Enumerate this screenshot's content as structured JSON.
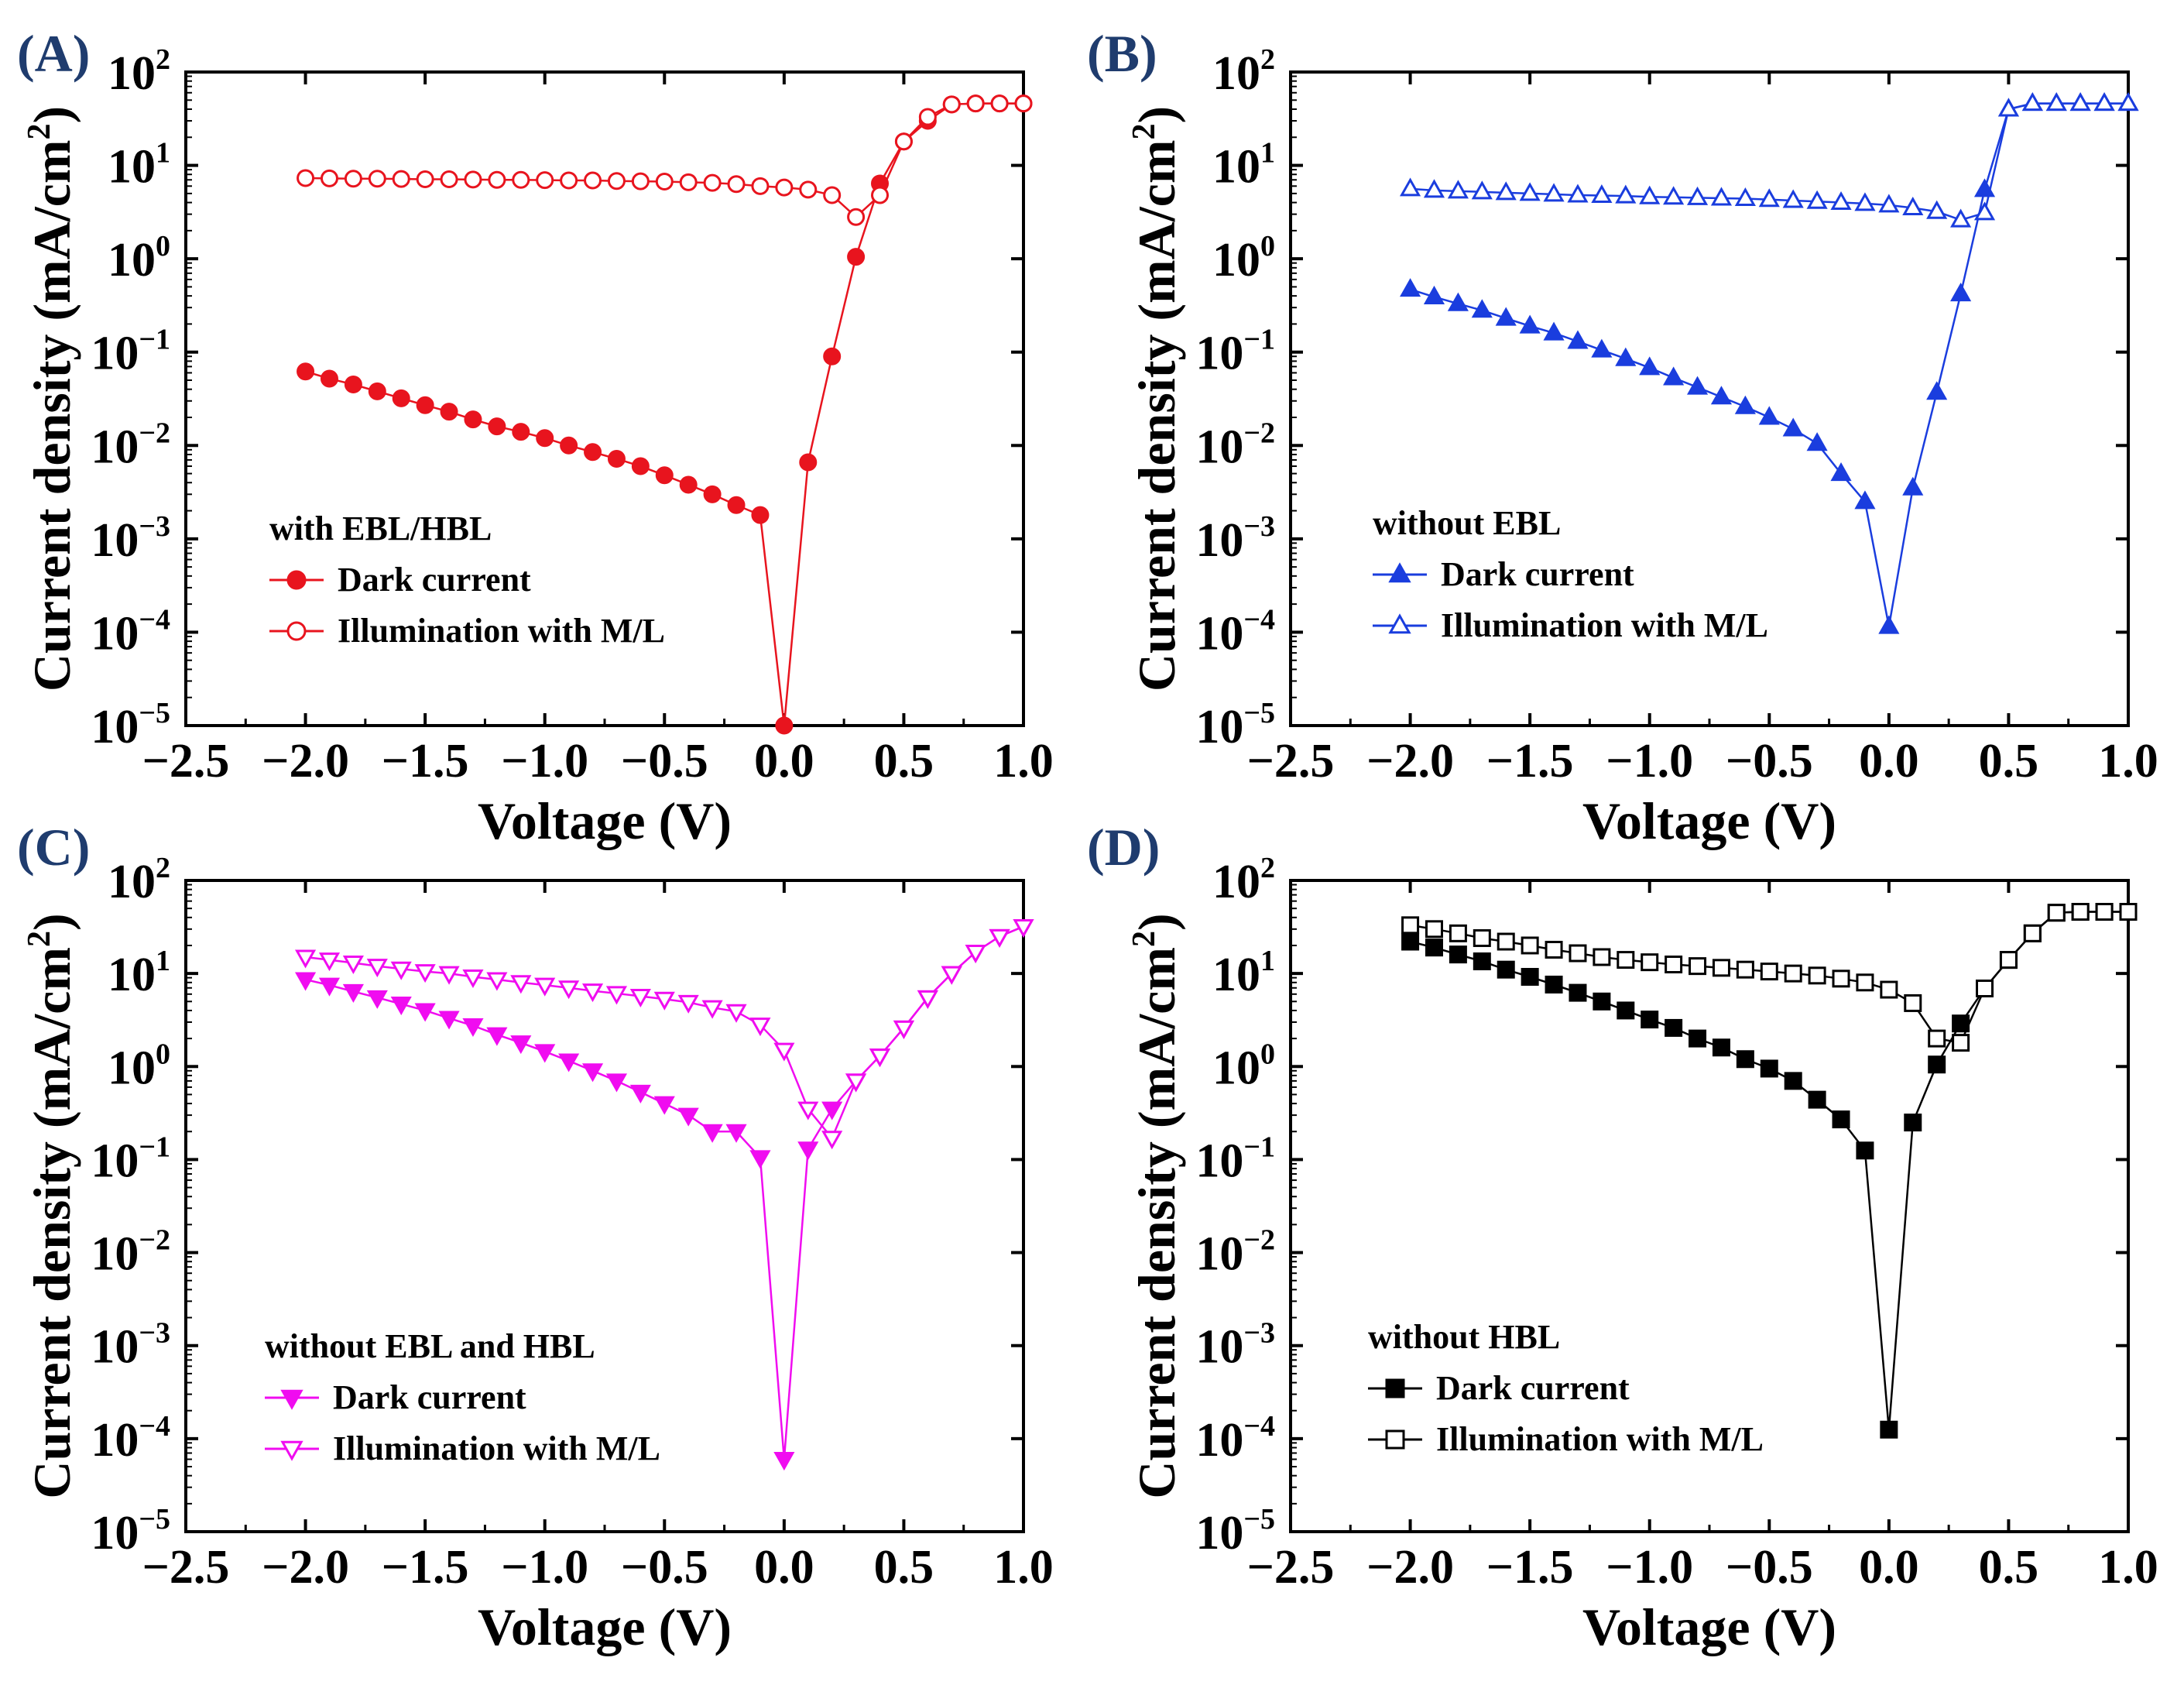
{
  "figure": {
    "x_label": "Voltage (V)",
    "y_label_main": "Current density (mA/cm",
    "y_label_sup": "2",
    "y_label_close": ")",
    "x_ticks": [
      "−2.5",
      "−2.0",
      "−1.5",
      "−1.0",
      "−0.5",
      "0.0",
      "0.5",
      "1.0"
    ],
    "y_tick_base": "10",
    "y_tick_exps": [
      "−5",
      "−4",
      "−3",
      "−2",
      "−1",
      "0",
      "1",
      "2"
    ],
    "legend_dark": "Dark current",
    "legend_illum": "Illumination with M/L"
  },
  "chart_data": [
    {
      "panel": "(A)",
      "type": "line",
      "yscale": "log",
      "xlim": [
        -2.5,
        1.0
      ],
      "ylim": [
        1e-05,
        100
      ],
      "legend_title": "with EBL/HBL",
      "color": "#e8141e",
      "marker": "circle",
      "x": [
        -2.0,
        -1.9,
        -1.8,
        -1.7,
        -1.6,
        -1.5,
        -1.4,
        -1.3,
        -1.2,
        -1.1,
        -1.0,
        -0.9,
        -0.8,
        -0.7,
        -0.6,
        -0.5,
        -0.4,
        -0.3,
        -0.2,
        -0.1,
        0.0,
        0.1,
        0.2,
        0.3,
        0.4,
        0.5,
        0.6,
        0.7,
        0.8,
        0.9,
        1.0
      ],
      "series": [
        {
          "name": "Dark current",
          "filled": true,
          "values": [
            0.062,
            0.052,
            0.045,
            0.038,
            0.032,
            0.027,
            0.023,
            0.019,
            0.016,
            0.014,
            0.012,
            0.01,
            0.0085,
            0.0072,
            0.006,
            0.0048,
            0.0038,
            0.003,
            0.0023,
            0.0018,
            1e-05,
            0.0066,
            0.09,
            1.05,
            6.4,
            18,
            30,
            45,
            46,
            46,
            46
          ]
        },
        {
          "name": "Illumination with M/L",
          "filled": false,
          "values": [
            7.3,
            7.25,
            7.2,
            7.2,
            7.15,
            7.1,
            7.1,
            7.05,
            7.0,
            7.0,
            6.95,
            6.9,
            6.9,
            6.8,
            6.75,
            6.7,
            6.6,
            6.5,
            6.3,
            6.0,
            5.8,
            5.5,
            4.8,
            2.8,
            4.8,
            18,
            33,
            45,
            46,
            46,
            46
          ]
        }
      ]
    },
    {
      "panel": "(B)",
      "type": "line",
      "yscale": "log",
      "xlim": [
        -2.5,
        1.0
      ],
      "ylim": [
        1e-05,
        100
      ],
      "legend_title": "without EBL",
      "color": "#1a3dde",
      "marker": "triangle-up",
      "x": [
        -2.0,
        -1.9,
        -1.8,
        -1.7,
        -1.6,
        -1.5,
        -1.4,
        -1.3,
        -1.2,
        -1.1,
        -1.0,
        -0.9,
        -0.8,
        -0.7,
        -0.6,
        -0.5,
        -0.4,
        -0.3,
        -0.2,
        -0.1,
        0.0,
        0.1,
        0.2,
        0.3,
        0.4,
        0.5,
        0.6,
        0.7,
        0.8,
        0.9,
        1.0
      ],
      "series": [
        {
          "name": "Dark current",
          "filled": true,
          "values": [
            0.47,
            0.39,
            0.33,
            0.28,
            0.23,
            0.19,
            0.16,
            0.13,
            0.105,
            0.085,
            0.068,
            0.053,
            0.042,
            0.033,
            0.026,
            0.02,
            0.015,
            0.0105,
            0.005,
            0.0025,
            0.000115,
            0.0035,
            0.037,
            0.42,
            5.5,
            40,
            46,
            46,
            46,
            46,
            46
          ]
        },
        {
          "name": "Illumination with M/L",
          "filled": false,
          "values": [
            5.6,
            5.4,
            5.3,
            5.2,
            5.1,
            5.0,
            4.9,
            4.8,
            4.75,
            4.7,
            4.6,
            4.55,
            4.5,
            4.45,
            4.4,
            4.3,
            4.2,
            4.1,
            4.0,
            3.9,
            3.75,
            3.5,
            3.2,
            2.6,
            3.1,
            40,
            46,
            46,
            46,
            46,
            46
          ]
        }
      ]
    },
    {
      "panel": "(C)",
      "type": "line",
      "yscale": "log",
      "xlim": [
        -2.5,
        1.0
      ],
      "ylim": [
        1e-05,
        100
      ],
      "legend_title": "without EBL and HBL",
      "color": "#f00cf0",
      "marker": "triangle-down",
      "x": [
        -2.0,
        -1.9,
        -1.8,
        -1.7,
        -1.6,
        -1.5,
        -1.4,
        -1.3,
        -1.2,
        -1.1,
        -1.0,
        -0.9,
        -0.8,
        -0.7,
        -0.6,
        -0.5,
        -0.4,
        -0.3,
        -0.2,
        -0.1,
        0.0,
        0.1,
        0.2,
        0.3,
        0.4,
        0.5,
        0.6,
        0.7,
        0.8,
        0.9,
        1.0
      ],
      "series": [
        {
          "name": "Dark current",
          "filled": true,
          "values": [
            8.6,
            7.5,
            6.4,
            5.5,
            4.7,
            4.0,
            3.3,
            2.75,
            2.2,
            1.8,
            1.45,
            1.15,
            0.9,
            0.7,
            0.53,
            0.4,
            0.3,
            0.2,
            0.2,
            0.105,
            6e-05,
            0.13,
            0.35,
            0.7,
            1.3,
            2.6,
            5.5,
            10,
            17,
            25,
            32
          ]
        },
        {
          "name": "Illumination with M/L",
          "filled": false,
          "values": [
            15,
            14,
            13,
            12,
            11.2,
            10.5,
            10,
            9.2,
            8.6,
            8.0,
            7.5,
            7.0,
            6.5,
            6.1,
            5.7,
            5.3,
            4.9,
            4.3,
            3.9,
            2.8,
            1.5,
            0.35,
            0.17,
            0.7,
            1.3,
            2.6,
            5.5,
            10,
            17,
            25,
            32
          ]
        }
      ]
    },
    {
      "panel": "(D)",
      "type": "line",
      "yscale": "log",
      "xlim": [
        -2.5,
        1.0
      ],
      "ylim": [
        1e-05,
        100
      ],
      "legend_title": "without HBL",
      "color": "#000000",
      "marker": "square",
      "x": [
        -2.0,
        -1.9,
        -1.8,
        -1.7,
        -1.6,
        -1.5,
        -1.4,
        -1.3,
        -1.2,
        -1.1,
        -1.0,
        -0.9,
        -0.8,
        -0.7,
        -0.6,
        -0.5,
        -0.4,
        -0.3,
        -0.2,
        -0.1,
        0.0,
        0.1,
        0.2,
        0.3,
        0.4,
        0.5,
        0.6,
        0.7,
        0.8,
        0.9,
        1.0
      ],
      "series": [
        {
          "name": "Dark current",
          "filled": true,
          "values": [
            22,
            19,
            16,
            13.5,
            11,
            9.2,
            7.6,
            6.2,
            5.0,
            4.0,
            3.2,
            2.6,
            2.0,
            1.6,
            1.2,
            0.95,
            0.7,
            0.44,
            0.27,
            0.125,
            0.000125,
            0.25,
            1.05,
            2.9,
            6.9,
            14,
            27,
            45,
            46,
            46,
            46
          ]
        },
        {
          "name": "Illumination with M/L",
          "filled": false,
          "values": [
            33,
            30,
            27,
            24,
            22,
            20,
            18,
            16.5,
            15,
            14,
            13.2,
            12.5,
            12,
            11.5,
            11,
            10.5,
            10,
            9.5,
            8.8,
            8.0,
            6.7,
            4.8,
            2.0,
            1.8,
            6.9,
            14,
            27,
            45,
            46,
            46,
            46
          ]
        }
      ]
    }
  ]
}
